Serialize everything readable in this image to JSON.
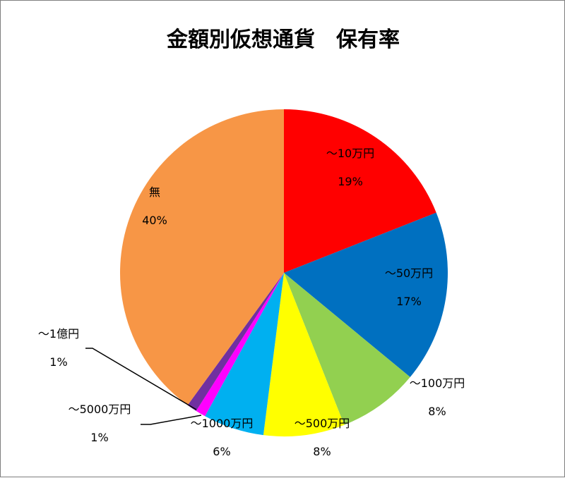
{
  "chart_data": {
    "type": "pie",
    "title": "金額別仮想通貨　保有率",
    "slices": [
      {
        "label": "～10万円",
        "percent_label": "19%",
        "value": 19,
        "color": "#ff0000"
      },
      {
        "label": "～50万円",
        "percent_label": "17%",
        "value": 17,
        "color": "#0070c0"
      },
      {
        "label": "～100万円",
        "percent_label": "8%",
        "value": 8,
        "color": "#92d050"
      },
      {
        "label": "～500万円",
        "percent_label": "8%",
        "value": 8,
        "color": "#ffff00"
      },
      {
        "label": "～1000万円",
        "percent_label": "6%",
        "value": 6,
        "color": "#00b0f0"
      },
      {
        "label": "～5000万円",
        "percent_label": "1%",
        "value": 1,
        "color": "#ff00ff"
      },
      {
        "label": "～1億円",
        "percent_label": "1%",
        "value": 1,
        "color": "#7030a0"
      },
      {
        "label": "無",
        "percent_label": "40%",
        "value": 40,
        "color": "#f79646"
      }
    ]
  }
}
